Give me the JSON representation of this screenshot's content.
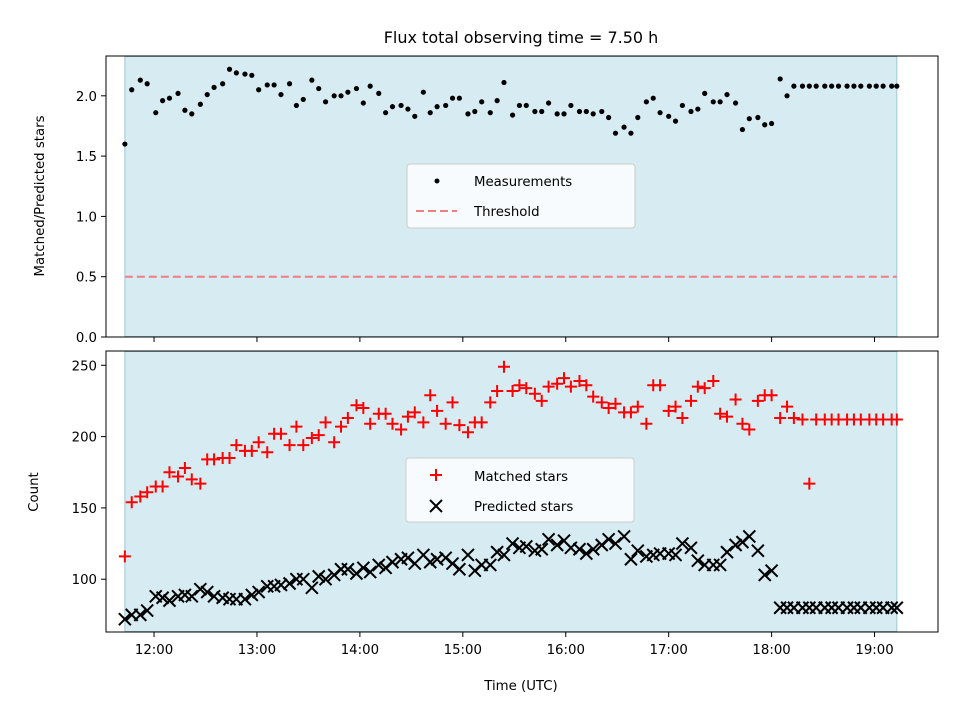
{
  "chart_data": {
    "title": "Flux total observing time = 7.50 h",
    "xlabel": "Time (UTC)",
    "x_ticks": [
      "12:00",
      "13:00",
      "14:00",
      "15:00",
      "16:00",
      "17:00",
      "18:00",
      "19:00"
    ],
    "xlim": [
      "11:32",
      "19:37"
    ],
    "observing_window": [
      "11:43",
      "19:13"
    ],
    "colors": {
      "window_fill": "#add8e6",
      "measurements": "#000000",
      "threshold": "#f08080",
      "matched": "#ff0000",
      "predicted": "#000000"
    },
    "panels": [
      {
        "type": "scatter",
        "ylabel": "Matched/Predicted stars",
        "ylim": [
          0,
          2.33
        ],
        "y_ticks": [
          "0.0",
          "0.5",
          "1.0",
          "1.5",
          "2.0"
        ],
        "legend_position": "center",
        "series": [
          {
            "name": "Measurements",
            "marker": "dot",
            "x": [
              "11:43",
              "11:47",
              "11:52",
              "11:56",
              "12:01",
              "12:05",
              "12:09",
              "12:14",
              "12:18",
              "12:22",
              "12:27",
              "12:31",
              "12:35",
              "12:40",
              "12:44",
              "12:48",
              "12:53",
              "12:57",
              "13:01",
              "13:06",
              "13:10",
              "13:14",
              "13:19",
              "13:23",
              "13:27",
              "13:32",
              "13:36",
              "13:40",
              "13:45",
              "13:49",
              "13:53",
              "13:58",
              "14:02",
              "14:06",
              "14:11",
              "14:15",
              "14:19",
              "14:24",
              "14:28",
              "14:32",
              "14:37",
              "14:41",
              "14:45",
              "14:50",
              "14:54",
              "14:58",
              "15:03",
              "15:07",
              "15:11",
              "15:16",
              "15:20",
              "15:24",
              "15:29",
              "15:33",
              "15:37",
              "15:42",
              "15:46",
              "15:50",
              "15:55",
              "15:59",
              "16:03",
              "16:08",
              "16:12",
              "16:16",
              "16:21",
              "16:25",
              "16:29",
              "16:34",
              "16:38",
              "16:42",
              "16:47",
              "16:51",
              "16:55",
              "17:00",
              "17:04",
              "17:08",
              "17:13",
              "17:17",
              "17:21",
              "17:26",
              "17:30",
              "17:34",
              "17:39",
              "17:43",
              "17:47",
              "17:52",
              "17:56",
              "18:00",
              "18:05",
              "18:09",
              "18:13",
              "18:18",
              "18:22",
              "18:26",
              "18:31",
              "18:35",
              "18:39",
              "18:44",
              "18:48",
              "18:52",
              "18:57",
              "19:01",
              "19:05",
              "19:10",
              "19:13"
            ],
            "y": [
              1.6,
              2.05,
              2.13,
              2.1,
              1.86,
              1.96,
              1.98,
              2.02,
              1.88,
              1.85,
              1.93,
              2.01,
              2.07,
              2.1,
              2.22,
              2.19,
              2.18,
              2.17,
              2.05,
              2.09,
              2.09,
              2.01,
              2.1,
              1.92,
              1.97,
              2.13,
              2.06,
              1.95,
              2.0,
              2.0,
              2.03,
              2.06,
              1.94,
              2.08,
              2.02,
              1.86,
              1.91,
              1.92,
              1.89,
              1.83,
              2.03,
              1.86,
              1.91,
              1.92,
              1.98,
              1.98,
              1.85,
              1.87,
              1.95,
              1.86,
              1.96,
              2.11,
              1.84,
              1.92,
              1.92,
              1.87,
              1.87,
              1.94,
              1.85,
              1.85,
              1.92,
              1.87,
              1.87,
              1.85,
              1.87,
              1.82,
              1.69,
              1.74,
              1.69,
              1.82,
              1.95,
              1.98,
              1.86,
              1.83,
              1.79,
              1.92,
              1.87,
              1.89,
              2.02,
              1.95,
              1.95,
              2.01,
              1.94,
              1.72,
              1.81,
              1.82,
              1.76,
              1.77,
              2.14,
              2.0,
              2.08,
              2.08,
              2.08,
              2.08,
              2.08,
              2.08,
              2.08,
              2.08,
              2.08,
              2.08,
              2.08,
              2.08,
              2.08,
              2.08,
              2.08
            ]
          },
          {
            "name": "Threshold",
            "type": "line",
            "style": "dashed",
            "y": 0.5
          }
        ]
      },
      {
        "type": "scatter",
        "ylabel": "Count",
        "ylim": [
          63,
          260
        ],
        "y_ticks": [
          "100",
          "150",
          "200",
          "250"
        ],
        "legend_position": "center",
        "series": [
          {
            "name": "Matched stars",
            "marker": "plus",
            "x": [
              "11:43",
              "11:47",
              "11:52",
              "11:56",
              "12:01",
              "12:05",
              "12:09",
              "12:14",
              "12:18",
              "12:22",
              "12:27",
              "12:31",
              "12:35",
              "12:40",
              "12:44",
              "12:48",
              "12:53",
              "12:57",
              "13:01",
              "13:06",
              "13:10",
              "13:14",
              "13:19",
              "13:23",
              "13:27",
              "13:32",
              "13:36",
              "13:40",
              "13:45",
              "13:49",
              "13:53",
              "13:58",
              "14:02",
              "14:06",
              "14:11",
              "14:15",
              "14:19",
              "14:24",
              "14:28",
              "14:32",
              "14:37",
              "14:41",
              "14:45",
              "14:50",
              "14:54",
              "14:58",
              "15:03",
              "15:07",
              "15:11",
              "15:16",
              "15:20",
              "15:24",
              "15:29",
              "15:33",
              "15:37",
              "15:42",
              "15:46",
              "15:50",
              "15:55",
              "15:59",
              "16:03",
              "16:08",
              "16:12",
              "16:16",
              "16:21",
              "16:25",
              "16:29",
              "16:34",
              "16:38",
              "16:42",
              "16:47",
              "16:51",
              "16:55",
              "17:00",
              "17:04",
              "17:08",
              "17:13",
              "17:17",
              "17:21",
              "17:26",
              "17:30",
              "17:34",
              "17:39",
              "17:43",
              "17:47",
              "17:52",
              "17:56",
              "18:00",
              "18:05",
              "18:09",
              "18:13",
              "18:18",
              "18:22",
              "18:26",
              "18:31",
              "18:35",
              "18:39",
              "18:44",
              "18:48",
              "18:52",
              "18:57",
              "19:01",
              "19:05",
              "19:10",
              "19:13"
            ],
            "y": [
              116,
              154,
              158,
              161,
              165,
              165,
              175,
              172,
              178,
              170,
              167,
              184,
              184,
              185,
              185,
              194,
              190,
              190,
              196,
              189,
              202,
              202,
              194,
              207,
              194,
              199,
              201,
              210,
              196,
              207,
              213,
              222,
              220,
              209,
              216,
              216,
              209,
              205,
              214,
              217,
              210,
              229,
              218,
              209,
              224,
              208,
              203,
              210,
              210,
              224,
              232,
              249,
              232,
              236,
              234,
              230,
              225,
              235,
              237,
              241,
              235,
              239,
              236,
              228,
              224,
              220,
              223,
              217,
              217,
              221,
              209,
              236,
              236,
              218,
              221,
              213,
              225,
              235,
              234,
              239,
              216,
              214,
              226,
              209,
              205,
              225,
              229,
              229,
              213,
              221,
              213,
              212,
              167,
              212,
              212,
              212,
              212,
              212,
              212,
              212,
              212,
              212,
              212,
              212,
              212
            ]
          },
          {
            "name": "Predicted stars",
            "marker": "x",
            "x": [
              "11:43",
              "11:47",
              "11:52",
              "11:56",
              "12:01",
              "12:05",
              "12:09",
              "12:14",
              "12:18",
              "12:22",
              "12:27",
              "12:31",
              "12:35",
              "12:40",
              "12:44",
              "12:48",
              "12:53",
              "12:57",
              "13:01",
              "13:06",
              "13:10",
              "13:14",
              "13:19",
              "13:23",
              "13:27",
              "13:32",
              "13:36",
              "13:40",
              "13:45",
              "13:49",
              "13:53",
              "13:58",
              "14:02",
              "14:06",
              "14:11",
              "14:15",
              "14:19",
              "14:24",
              "14:28",
              "14:32",
              "14:37",
              "14:41",
              "14:45",
              "14:50",
              "14:54",
              "14:58",
              "15:03",
              "15:07",
              "15:11",
              "15:16",
              "15:20",
              "15:24",
              "15:29",
              "15:33",
              "15:37",
              "15:42",
              "15:46",
              "15:50",
              "15:55",
              "15:59",
              "16:03",
              "16:08",
              "16:12",
              "16:16",
              "16:21",
              "16:25",
              "16:29",
              "16:34",
              "16:38",
              "16:42",
              "16:47",
              "16:51",
              "16:55",
              "17:00",
              "17:04",
              "17:08",
              "17:13",
              "17:17",
              "17:21",
              "17:26",
              "17:30",
              "17:34",
              "17:39",
              "17:43",
              "17:47",
              "17:52",
              "17:56",
              "18:00",
              "18:05",
              "18:09",
              "18:13",
              "18:18",
              "18:22",
              "18:26",
              "18:31",
              "18:35",
              "18:39",
              "18:44",
              "18:48",
              "18:52",
              "18:57",
              "19:01",
              "19:05",
              "19:10",
              "19:13"
            ],
            "y": [
              72,
              75,
              75,
              78,
              88,
              87,
              85,
              88,
              89,
              88,
              93,
              91,
              88,
              87,
              86,
              86,
              86,
              89,
              91,
              95,
              95,
              96,
              97,
              100,
              100,
              94,
              102,
              100,
              103,
              107,
              107,
              104,
              108,
              105,
              110,
              108,
              112,
              114,
              115,
              111,
              117,
              112,
              114,
              115,
              111,
              107,
              117,
              106,
              110,
              110,
              119,
              117,
              125,
              122,
              123,
              120,
              121,
              128,
              124,
              127,
              122,
              121,
              118,
              121,
              124,
              128,
              125,
              130,
              114,
              120,
              116,
              117,
              118,
              118,
              117,
              125,
              122,
              113,
              110,
              110,
              110,
              119,
              124,
              126,
              130,
              120,
              103,
              106,
              80,
              80,
              80,
              80,
              80,
              80,
              80,
              80,
              80,
              80,
              80,
              80,
              80,
              80,
              80,
              80,
              80
            ]
          }
        ]
      }
    ]
  }
}
